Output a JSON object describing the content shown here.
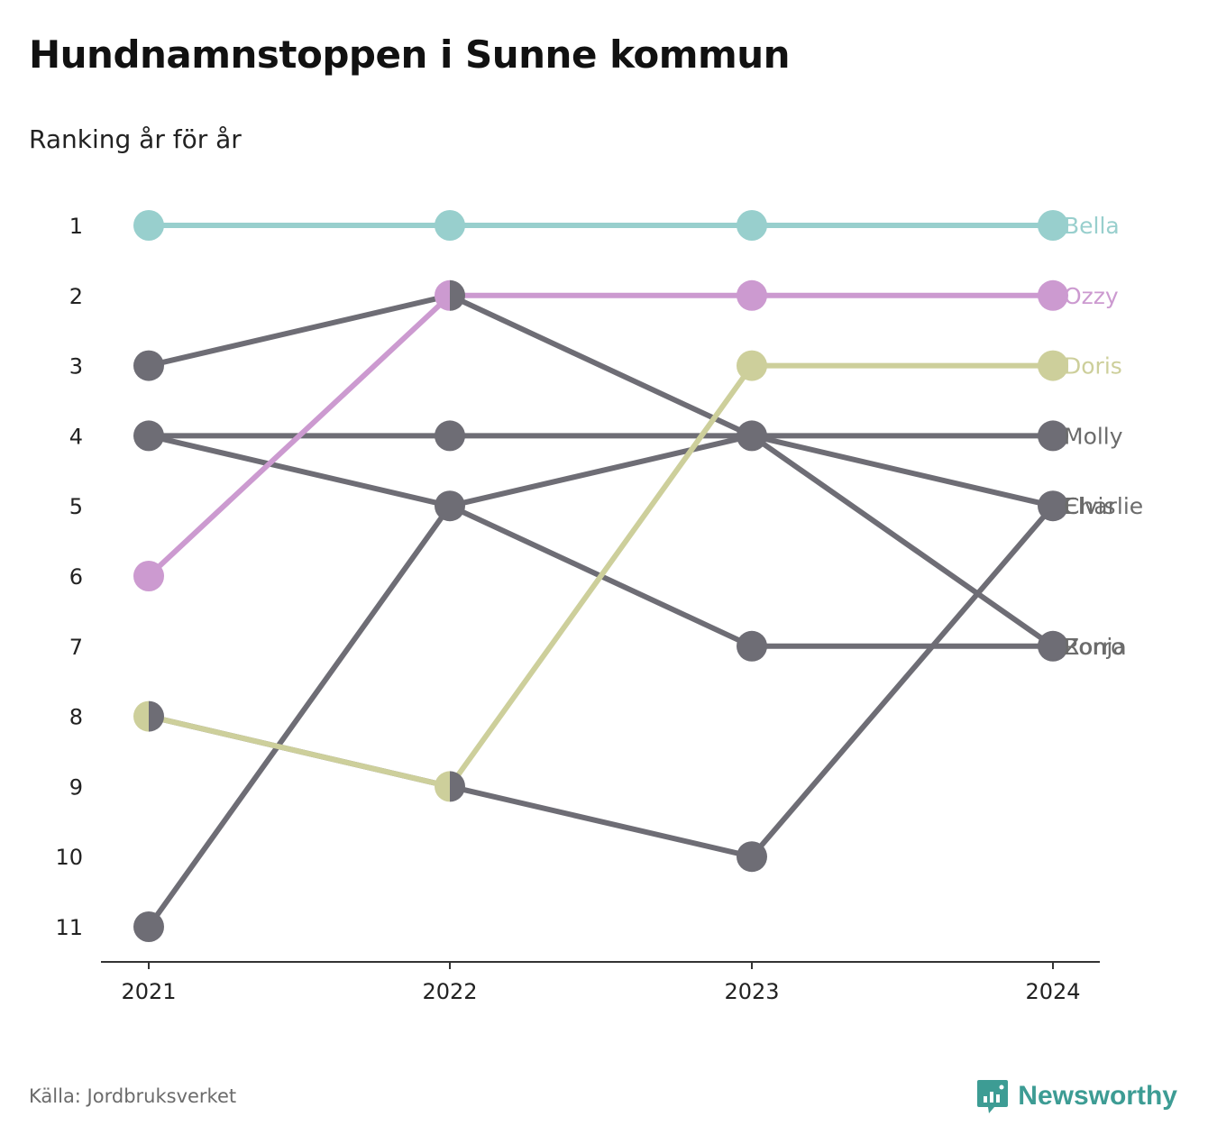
{
  "title": "Hundnamnstoppen i Sunne kommun",
  "subtitle": "Ranking år för år",
  "source": "Källa: Jordbruksverket",
  "brand": "Newsworthy",
  "colors": {
    "teal": "#98cfcd",
    "pink": "#cc9ad0",
    "olive": "#cdcf9b",
    "grey": "#6e6d75",
    "axis": "#333333",
    "label_grey": "#6b6b6b",
    "brand": "#3d9c94"
  },
  "chart_data": {
    "type": "line",
    "x": [
      "2021",
      "2022",
      "2023",
      "2024"
    ],
    "y_ticks": [
      1,
      2,
      3,
      4,
      5,
      6,
      7,
      8,
      9,
      10,
      11
    ],
    "ylim": [
      1,
      11
    ],
    "y_inverted": true,
    "series": [
      {
        "name": "Bella",
        "values": [
          1,
          1,
          1,
          1
        ],
        "color": "#98cfcd"
      },
      {
        "name": "Ozzy",
        "values": [
          6,
          2,
          2,
          2
        ],
        "color": "#cc9ad0"
      },
      {
        "name": "Doris",
        "values": [
          8,
          9,
          3,
          3
        ],
        "color": "#cdcf9b"
      },
      {
        "name": "Molly",
        "values": [
          4,
          4,
          4,
          4
        ],
        "color": "#6e6d75"
      },
      {
        "name": "Elvis",
        "values": [
          11,
          5,
          4,
          5
        ],
        "color": "#6e6d75"
      },
      {
        "name": "Zorro",
        "values": [
          4,
          5,
          7,
          7
        ],
        "color": "#6e6d75"
      },
      {
        "name": "Ronja",
        "values": [
          3,
          2,
          4,
          7
        ],
        "color": "#6e6d75"
      },
      {
        "name": "Charlie",
        "values": [
          8,
          9,
          10,
          5
        ],
        "color": "#6e6d75"
      }
    ]
  }
}
